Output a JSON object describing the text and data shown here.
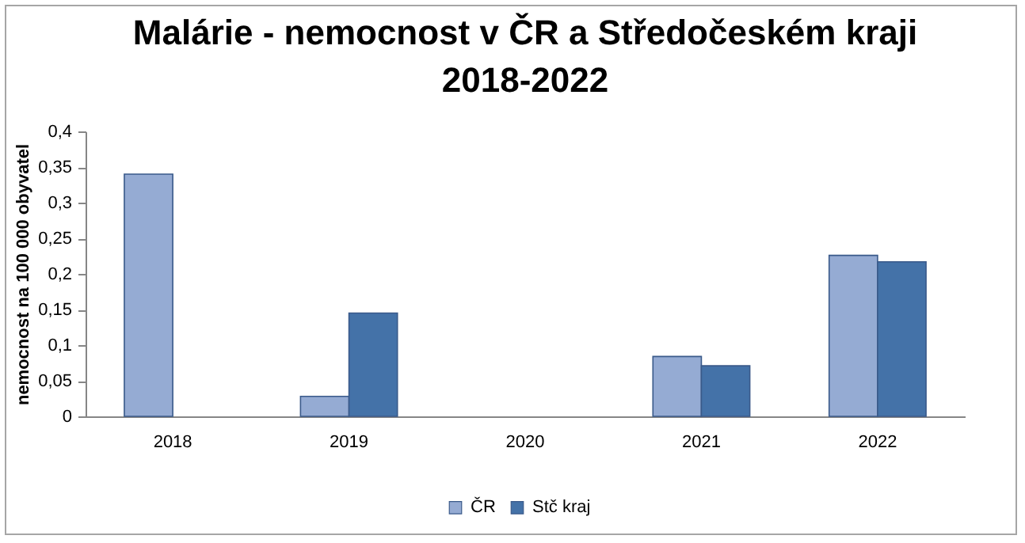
{
  "chart_data": {
    "type": "bar",
    "title": "Malárie - nemocnost v ČR a Středočeském kraji\n2018-2022",
    "ylabel": "nemocnost na 100 000 obyvatel",
    "categories": [
      "2018",
      "2019",
      "2020",
      "2021",
      "2022"
    ],
    "series": [
      {
        "name": "ČR",
        "color": "#95abd3",
        "values": [
          0.34,
          0.028,
          0,
          0.084,
          0.226
        ]
      },
      {
        "name": "Stč kraj",
        "color": "#4472a8",
        "values": [
          0,
          0.145,
          0,
          0.071,
          0.217
        ]
      }
    ],
    "ylim": [
      0,
      0.4
    ],
    "yticks": [
      {
        "value": 0,
        "label": "0"
      },
      {
        "value": 0.05,
        "label": "0,05"
      },
      {
        "value": 0.1,
        "label": "0,1"
      },
      {
        "value": 0.15,
        "label": "0,15"
      },
      {
        "value": 0.2,
        "label": "0,2"
      },
      {
        "value": 0.25,
        "label": "0,25"
      },
      {
        "value": 0.3,
        "label": "0,3"
      },
      {
        "value": 0.35,
        "label": "0,35"
      },
      {
        "value": 0.4,
        "label": "0,4"
      }
    ],
    "grid": false,
    "legend": "bottom"
  }
}
